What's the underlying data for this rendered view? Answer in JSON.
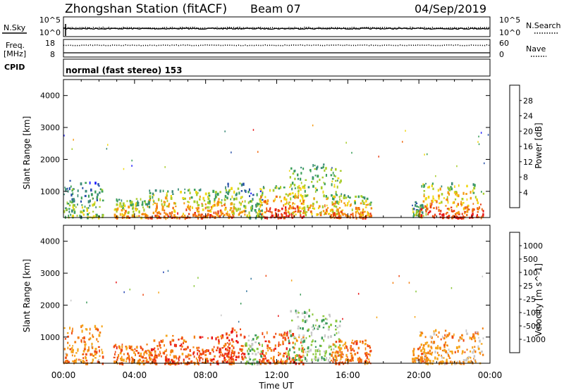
{
  "header": {
    "station": "Zhongshan Station (fitACF)",
    "beam": "Beam 07",
    "date": "04/Sep/2019"
  },
  "noise_panel": {
    "left_label": "N.Sky",
    "left_ticks": [
      "10^5",
      "10^0"
    ],
    "right_ticks": [
      "10^5",
      "10^0"
    ],
    "right_label": "N.Search"
  },
  "freq_panel": {
    "left_label_1": "Freq.",
    "left_label_2": "[MHz]",
    "left_ticks": [
      "18",
      "8"
    ],
    "right_ticks": [
      "60",
      "0"
    ],
    "right_label": "Nave"
  },
  "cpid": {
    "label": "CPID",
    "value": "normal (fast stereo) 153"
  },
  "time_axis": {
    "label": "Time UT",
    "ticks": [
      "00:00",
      "04:00",
      "08:00",
      "12:00",
      "16:00",
      "20:00",
      "00:00"
    ]
  },
  "colors": {
    "power_scale": [
      "#1a1aff",
      "#2850a8",
      "#3a8a78",
      "#3ca05a",
      "#a8cc2a",
      "#f0d814",
      "#f59a10",
      "#f06a10",
      "#e83c14",
      "#e81818"
    ],
    "velocity_scale": [
      "#e81818",
      "#ef4a14",
      "#f48010",
      "#f5a51a",
      "#c8c8c8",
      "#8cc83c",
      "#3c9a5a",
      "#3a7aa0",
      "#2848b4"
    ]
  },
  "chart_data": [
    {
      "type": "line",
      "panel": "noise",
      "ylabel": "N.Sky",
      "y_scale": "log",
      "ylim": [
        "10^0",
        "10^5"
      ],
      "x": [
        "00:00",
        "24:00"
      ],
      "series": [
        {
          "name": "N.Sky",
          "style": "solid",
          "values_log10": [
            2.6,
            2.6
          ]
        },
        {
          "name": "N.Search",
          "style": "dotted",
          "values_log10": [
            2.9,
            2.9
          ]
        }
      ]
    },
    {
      "type": "line",
      "panel": "frequency",
      "ylabel": "Freq. [MHz]",
      "ylim_left": [
        8,
        18
      ],
      "ylim_right": [
        0,
        60
      ],
      "series": [
        {
          "name": "Freq.",
          "style": "solid",
          "approx_value": 10
        },
        {
          "name": "Nave",
          "style": "dotted",
          "approx_value": 44
        }
      ]
    },
    {
      "type": "heatmap",
      "panel": "power",
      "ylabel": "Slant Range [km]",
      "xlabel": "Time UT",
      "yticks": [
        1000,
        2000,
        3000,
        4000
      ],
      "ylim": [
        180,
        4500
      ],
      "xlim_hours": [
        0,
        24
      ],
      "colorbar_label": "Power [dB]",
      "colorbar_ticks": [
        "4",
        "8",
        "12",
        "16",
        "20",
        "24",
        "28"
      ],
      "echo_regions": [
        {
          "t0": 0.0,
          "t1": 2.2,
          "r0": 200,
          "r1": 1400,
          "level": 0.35
        },
        {
          "t0": 2.8,
          "t1": 4.8,
          "r0": 200,
          "r1": 800,
          "level": 0.55
        },
        {
          "t0": 4.8,
          "t1": 9.6,
          "r0": 200,
          "r1": 1100,
          "level": 0.65
        },
        {
          "t0": 9.0,
          "t1": 10.2,
          "r0": 300,
          "r1": 1300,
          "level": 0.5
        },
        {
          "t0": 10.2,
          "t1": 11.2,
          "r0": 200,
          "r1": 1100,
          "level": 0.35
        },
        {
          "t0": 11.0,
          "t1": 13.5,
          "r0": 200,
          "r1": 1200,
          "level": 0.75
        },
        {
          "t0": 12.5,
          "t1": 15.6,
          "r0": 300,
          "r1": 1900,
          "level": 0.5
        },
        {
          "t0": 15.0,
          "t1": 17.3,
          "r0": 200,
          "r1": 950,
          "level": 0.65
        },
        {
          "t0": 19.6,
          "t1": 20.4,
          "r0": 250,
          "r1": 700,
          "level": 0.35
        },
        {
          "t0": 20.0,
          "t1": 23.6,
          "r0": 200,
          "r1": 1300,
          "level": 0.7
        }
      ]
    },
    {
      "type": "heatmap",
      "panel": "velocity",
      "ylabel": "Slant Range [km]",
      "xlabel": "Time UT",
      "yticks": [
        1000,
        2000,
        3000,
        4000
      ],
      "ylim": [
        180,
        4500
      ],
      "xlim_hours": [
        0,
        24
      ],
      "colorbar_label": "Velocity [m s^-1]",
      "colorbar_ticks": [
        "1000",
        "500",
        "100",
        "25",
        "-25",
        "-100",
        "-500",
        "-1000"
      ],
      "echo_regions": [
        {
          "t0": 0.0,
          "t1": 2.2,
          "r0": 200,
          "r1": 1400,
          "level": 0.3
        },
        {
          "t0": 2.8,
          "t1": 4.8,
          "r0": 200,
          "r1": 800,
          "level": 0.25
        },
        {
          "t0": 4.8,
          "t1": 9.6,
          "r0": 200,
          "r1": 1100,
          "level": 0.2
        },
        {
          "t0": 9.0,
          "t1": 10.2,
          "r0": 300,
          "r1": 1300,
          "level": 0.15
        },
        {
          "t0": 10.2,
          "t1": 11.2,
          "r0": 200,
          "r1": 1100,
          "level": 0.6
        },
        {
          "t0": 11.0,
          "t1": 13.5,
          "r0": 200,
          "r1": 1200,
          "level": 0.22
        },
        {
          "t0": 12.5,
          "t1": 15.6,
          "r0": 300,
          "r1": 1900,
          "level": 0.6
        },
        {
          "t0": 15.0,
          "t1": 17.3,
          "r0": 200,
          "r1": 950,
          "level": 0.25
        },
        {
          "t0": 19.6,
          "t1": 20.4,
          "r0": 250,
          "r1": 700,
          "level": 0.3
        },
        {
          "t0": 20.0,
          "t1": 23.6,
          "r0": 200,
          "r1": 1300,
          "level": 0.35
        }
      ]
    }
  ]
}
